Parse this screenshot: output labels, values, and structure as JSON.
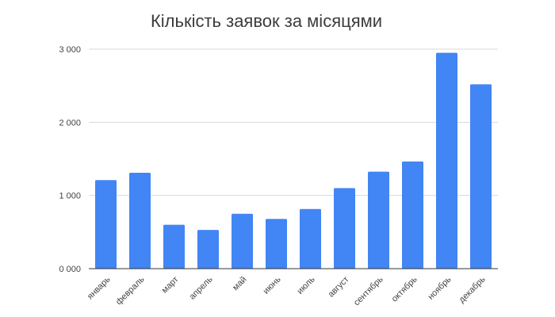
{
  "chart_data": {
    "type": "bar",
    "title": "Кількість заявок за місяцями",
    "xlabel": "",
    "ylabel": "",
    "categories": [
      "январь",
      "февраль",
      "март",
      "апрель",
      "май",
      "июнь",
      "июль",
      "август",
      "сентябрь",
      "октябрь",
      "ноябрь",
      "декабрь"
    ],
    "values": [
      1210,
      1310,
      600,
      530,
      750,
      680,
      815,
      1100,
      1325,
      1465,
      2950,
      2520
    ],
    "ylim": [
      0,
      3000
    ],
    "yticks": [
      0,
      1000,
      2000,
      3000
    ],
    "ytick_labels": [
      "0 000",
      "1 000",
      "2 000",
      "3 000"
    ],
    "grid": true,
    "legend": "none",
    "bar_color": "#4285f4",
    "grid_color": "#d9d9d9",
    "axis_color": "#333333"
  }
}
